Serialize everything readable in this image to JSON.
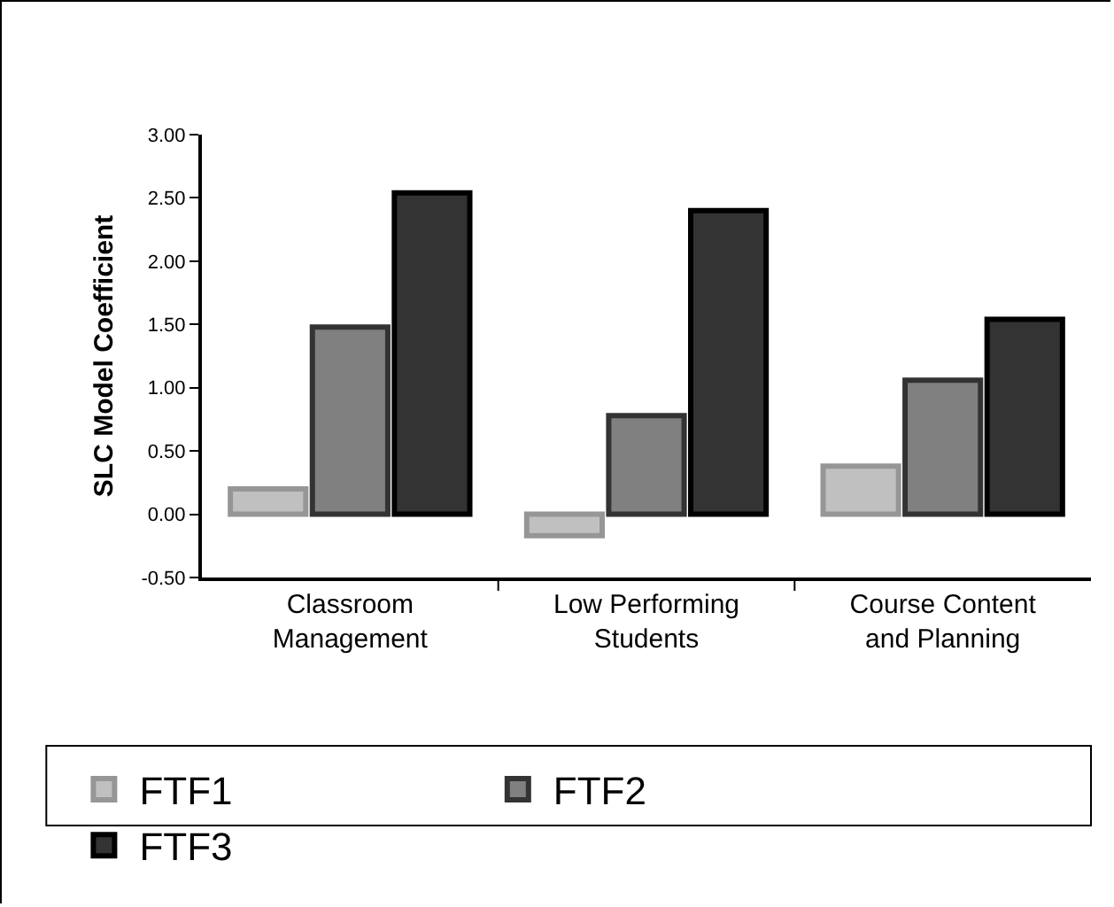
{
  "chart_data": {
    "type": "bar",
    "ylabel": "SLC Model Coefficient",
    "categories": [
      "Classroom Management",
      "Low Performing Students",
      "Course Content and Planning"
    ],
    "series": [
      {
        "name": "FTF1",
        "color": "#c0c0c0",
        "values": [
          0.2,
          -0.17,
          0.38
        ]
      },
      {
        "name": "FTF2",
        "color": "#808080",
        "values": [
          1.48,
          0.78,
          1.06
        ]
      },
      {
        "name": "FTF3",
        "color": "#333333",
        "values": [
          2.54,
          2.4,
          1.54
        ]
      }
    ],
    "ylim": [
      -0.5,
      3
    ],
    "yticks": [
      {
        "value": -0.5,
        "label": "-0.50"
      },
      {
        "value": 0,
        "label": "0.00"
      },
      {
        "value": 0.5,
        "label": "0.50"
      },
      {
        "value": 1,
        "label": "1.00"
      },
      {
        "value": 1.5,
        "label": "1.50"
      },
      {
        "value": 2,
        "label": "2.00"
      },
      {
        "value": 2.5,
        "label": "2.50"
      },
      {
        "value": 3,
        "label": "3.00"
      }
    ],
    "grid": false,
    "legend": "bottom"
  }
}
